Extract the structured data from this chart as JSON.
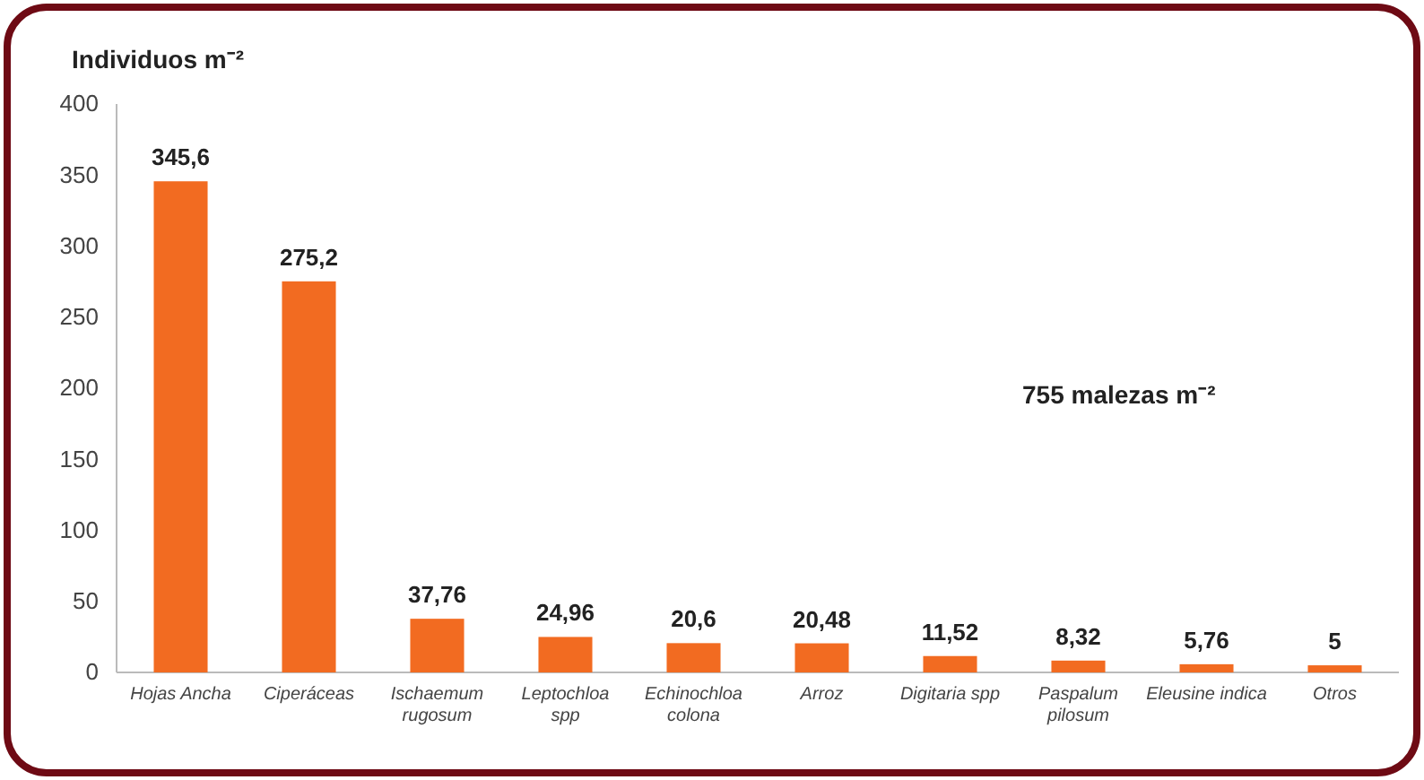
{
  "chart_data": {
    "type": "bar",
    "ylabel": "Individuos m⁻²",
    "categories": [
      "Hojas Ancha",
      "Ciperáceas",
      "Ischaemum rugosum",
      "Leptochloa spp",
      "Echinochloa colona",
      "Arroz",
      "Digitaria spp",
      "Paspalum pilosum",
      "Eleusine indica",
      "Otros"
    ],
    "values": [
      345.6,
      275.2,
      37.76,
      24.96,
      20.6,
      20.48,
      11.52,
      8.32,
      5.76,
      5
    ],
    "value_labels": [
      "345,6",
      "275,2",
      "37,76",
      "24,96",
      "20,6",
      "20,48",
      "11,52",
      "8,32",
      "5,76",
      "5"
    ],
    "color": "#f26b21",
    "ylim": [
      0,
      400
    ],
    "yticks": [
      0,
      50,
      100,
      150,
      200,
      250,
      300,
      350,
      400
    ],
    "grid": false,
    "annotations": [
      "755 malezas m⁻²"
    ]
  }
}
